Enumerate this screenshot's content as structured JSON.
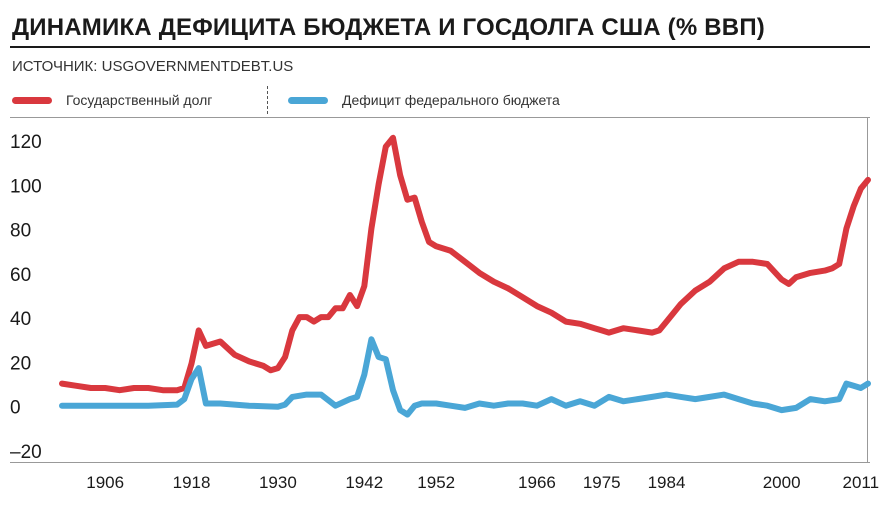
{
  "header": {
    "title": "ДИНАМИКА ДЕФИЦИТА БЮДЖЕТА И ГОСДОЛГА США (% ВВП)",
    "source": "ИСТОЧНИК: USGOVERNMENTDEBT.US"
  },
  "colors": {
    "debt": "#d9383e",
    "deficit": "#4aa6d6",
    "text": "#1a1a1a"
  },
  "legend": [
    {
      "label": "Государственный долг",
      "color": "#d9383e"
    },
    {
      "label": "Дефицит федерального бюджета",
      "color": "#4aa6d6"
    }
  ],
  "chart_data": {
    "type": "line",
    "title": "ДИНАМИКА ДЕФИЦИТА БЮДЖЕТА И ГОСДОЛГА США (% ВВП)",
    "xlabel": "",
    "ylabel": "",
    "ylim": [
      -20,
      120
    ],
    "xlim": [
      1900,
      2012
    ],
    "yticks": [
      120,
      100,
      80,
      60,
      40,
      20,
      0,
      -20
    ],
    "ytick_labels": [
      "120",
      "100",
      "80",
      "60",
      "40",
      "20",
      "0",
      "–20"
    ],
    "xticks": [
      1906,
      1918,
      1930,
      1942,
      1952,
      1966,
      1975,
      1984,
      2000,
      2011
    ],
    "xtick_labels": [
      "1906",
      "1918",
      "1930",
      "1942",
      "1952",
      "1966",
      "1975",
      "1984",
      "2000",
      "2011"
    ],
    "grid": false,
    "legend_position": "top",
    "series": [
      {
        "name": "Государственный долг",
        "color": "#d9383e",
        "x": [
          1900,
          1902,
          1904,
          1906,
          1908,
          1910,
          1912,
          1914,
          1916,
          1917,
          1918,
          1919,
          1920,
          1922,
          1924,
          1926,
          1928,
          1929,
          1930,
          1931,
          1932,
          1933,
          1934,
          1935,
          1936,
          1937,
          1938,
          1939,
          1940,
          1941,
          1942,
          1943,
          1944,
          1945,
          1946,
          1947,
          1948,
          1949,
          1950,
          1951,
          1952,
          1954,
          1956,
          1958,
          1960,
          1962,
          1964,
          1966,
          1968,
          1970,
          1972,
          1974,
          1975,
          1976,
          1978,
          1980,
          1982,
          1983,
          1984,
          1986,
          1988,
          1990,
          1992,
          1994,
          1996,
          1998,
          2000,
          2001,
          2002,
          2004,
          2006,
          2007,
          2008,
          2009,
          2010,
          2011,
          2012
        ],
        "values": [
          10,
          9,
          8,
          8,
          7,
          8,
          8,
          7,
          7,
          8,
          19,
          34,
          27,
          29,
          23,
          20,
          18,
          16,
          17,
          22,
          34,
          40,
          40,
          38,
          40,
          40,
          44,
          44,
          50,
          45,
          54,
          80,
          100,
          117,
          121,
          104,
          93,
          94,
          83,
          74,
          72,
          70,
          65,
          60,
          56,
          53,
          49,
          45,
          42,
          38,
          37,
          35,
          34,
          33,
          35,
          34,
          33,
          34,
          38,
          46,
          52,
          56,
          62,
          65,
          65,
          64,
          57,
          55,
          58,
          60,
          61,
          62,
          64,
          80,
          90,
          98,
          102
        ]
      },
      {
        "name": "Дефицит федерального бюджета",
        "color": "#4aa6d6",
        "x": [
          1900,
          1904,
          1908,
          1912,
          1916,
          1917,
          1918,
          1919,
          1920,
          1922,
          1926,
          1930,
          1931,
          1932,
          1934,
          1936,
          1938,
          1940,
          1941,
          1942,
          1943,
          1944,
          1945,
          1946,
          1947,
          1948,
          1949,
          1950,
          1952,
          1954,
          1956,
          1958,
          1960,
          1962,
          1964,
          1966,
          1968,
          1970,
          1972,
          1974,
          1976,
          1978,
          1980,
          1982,
          1984,
          1986,
          1988,
          1990,
          1992,
          1994,
          1996,
          1998,
          2000,
          2002,
          2004,
          2006,
          2008,
          2009,
          2010,
          2011,
          2012
        ],
        "values": [
          0,
          0,
          0,
          0,
          0.5,
          3,
          12,
          17,
          1,
          1,
          0,
          -0.5,
          0.5,
          4,
          5,
          5,
          0,
          3,
          4,
          14,
          30,
          22,
          21,
          7,
          -2,
          -4,
          0,
          1,
          1,
          0,
          -1,
          1,
          0,
          1,
          1,
          0,
          3,
          0,
          2,
          0,
          4,
          2,
          3,
          4,
          5,
          4,
          3,
          4,
          5,
          3,
          1,
          0,
          -2,
          -1,
          3,
          2,
          3,
          10,
          9,
          8,
          10
        ]
      }
    ]
  }
}
